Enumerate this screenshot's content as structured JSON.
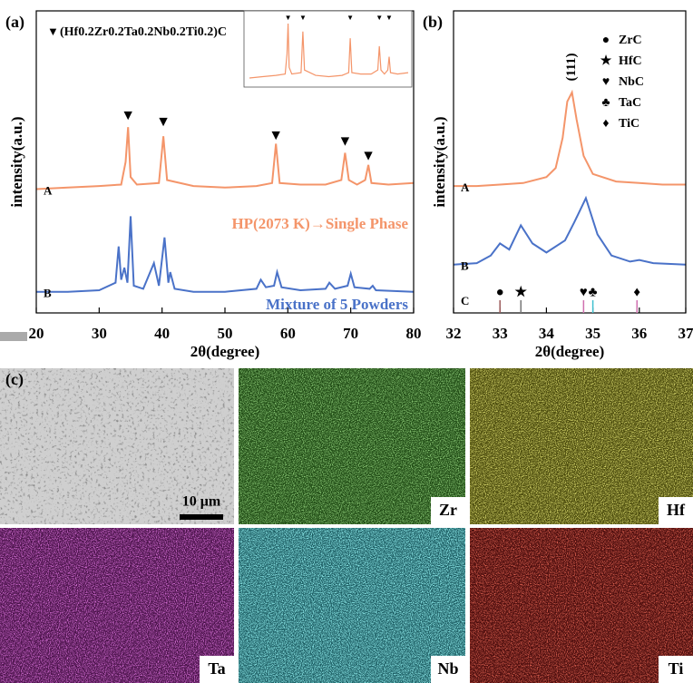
{
  "chart_data": [
    {
      "type": "line",
      "panel_label": "(a)",
      "xlabel": "2θ(degree)",
      "ylabel": "intensity(a.u.)",
      "xlim": [
        20,
        80
      ],
      "xticks": [
        20,
        30,
        40,
        50,
        60,
        70,
        80
      ],
      "ylim": [
        0,
        100
      ],
      "series": [
        {
          "name": "A",
          "color": "#f4956a",
          "annotation": "HP(2073 K)→Single Phase",
          "x": [
            20,
            25,
            30,
            33.5,
            34.2,
            34.6,
            35.0,
            36,
            39.5,
            40.2,
            40.8,
            45,
            50,
            55,
            57.5,
            58.1,
            58.7,
            62,
            66,
            68.5,
            69.1,
            69.7,
            71,
            72.3,
            72.8,
            73.3,
            76,
            80
          ],
          "values": [
            41,
            41.5,
            42,
            42.5,
            50,
            61.5,
            45,
            42.5,
            43,
            58.5,
            44,
            42,
            41.5,
            42,
            43,
            56,
            43,
            42.5,
            42.5,
            44,
            53,
            44,
            42.5,
            44,
            49,
            43,
            42.5,
            43
          ]
        },
        {
          "name": "B",
          "color": "#4a72c8",
          "annotation": "Mixture of 5 Powders",
          "x": [
            20,
            25,
            30,
            32.6,
            33.1,
            33.5,
            34.0,
            34.5,
            35.0,
            35.5,
            37,
            38.7,
            39.5,
            40.4,
            41.0,
            41.3,
            42,
            45,
            50,
            55,
            55.7,
            56.5,
            57.8,
            58.3,
            59,
            62,
            66,
            66.6,
            67.5,
            69.5,
            70,
            70.6,
            73,
            73.5,
            74,
            80
          ],
          "values": [
            7,
            7,
            7.5,
            10,
            22,
            11,
            15,
            10,
            32,
            9,
            8,
            16.5,
            9,
            25,
            10,
            13.5,
            8,
            7,
            7,
            8,
            11,
            8.5,
            9,
            13.5,
            8.5,
            7.5,
            8,
            10,
            8,
            9,
            13,
            8.5,
            8,
            9,
            7.5,
            7
          ]
        }
      ],
      "peak_marker": {
        "symbol": "▼",
        "label": "(Hf0.2Zr0.2Ta0.2Nb0.2Ti0.2)C",
        "x": [
          34.6,
          40.2,
          58.1,
          69.1,
          72.8
        ],
        "y": [
          65,
          63,
          58.5,
          56.5,
          51.7
        ]
      }
    },
    {
      "type": "line",
      "panel_label": "(b)",
      "xlabel": "2θ(degree)",
      "ylabel": "intensity(a.u.)",
      "xlim": [
        32,
        37
      ],
      "xticks": [
        32,
        33,
        34,
        35,
        36,
        37
      ],
      "ylim": [
        0,
        100
      ],
      "peak_label": "(111)",
      "reference_label": "C",
      "series": [
        {
          "name": "A",
          "color": "#f4956a",
          "x": [
            32,
            32.5,
            33,
            33.5,
            34,
            34.2,
            34.35,
            34.45,
            34.55,
            34.65,
            34.8,
            35,
            35.5,
            36,
            36.5,
            37
          ],
          "values": [
            42,
            42,
            42.5,
            43,
            45,
            48,
            58,
            70,
            73,
            64,
            52,
            46,
            43.5,
            43,
            42.5,
            42.5
          ]
        },
        {
          "name": "B",
          "color": "#4a72c8",
          "x": [
            32,
            32.5,
            32.8,
            33,
            33.2,
            33.45,
            33.7,
            34,
            34.4,
            34.6,
            34.85,
            35.1,
            35.4,
            35.8,
            36,
            36.3,
            37
          ],
          "values": [
            16,
            16.5,
            19,
            23,
            21,
            29,
            23,
            20,
            24,
            30,
            38,
            26,
            19,
            17,
            17.5,
            16.5,
            16
          ]
        }
      ],
      "references": [
        {
          "name": "ZrC",
          "symbol": "●",
          "x": 33.0,
          "color": "#9b5a5a"
        },
        {
          "name": "HfC",
          "symbol": "★",
          "x": 33.45,
          "color": "#777777"
        },
        {
          "name": "NbC",
          "symbol": "♥",
          "x": 34.8,
          "color": "#d070b0"
        },
        {
          "name": "TaC",
          "symbol": "♣",
          "x": 35.0,
          "color": "#40c0d0"
        },
        {
          "name": "TiC",
          "symbol": "♦",
          "x": 35.95,
          "color": "#d070b0"
        }
      ]
    }
  ],
  "figure_c": {
    "panel_label": "(c)",
    "scale_bar": "10 μm",
    "maps": [
      "Zr",
      "Hf",
      "Ta",
      "Nb",
      "Ti"
    ]
  }
}
